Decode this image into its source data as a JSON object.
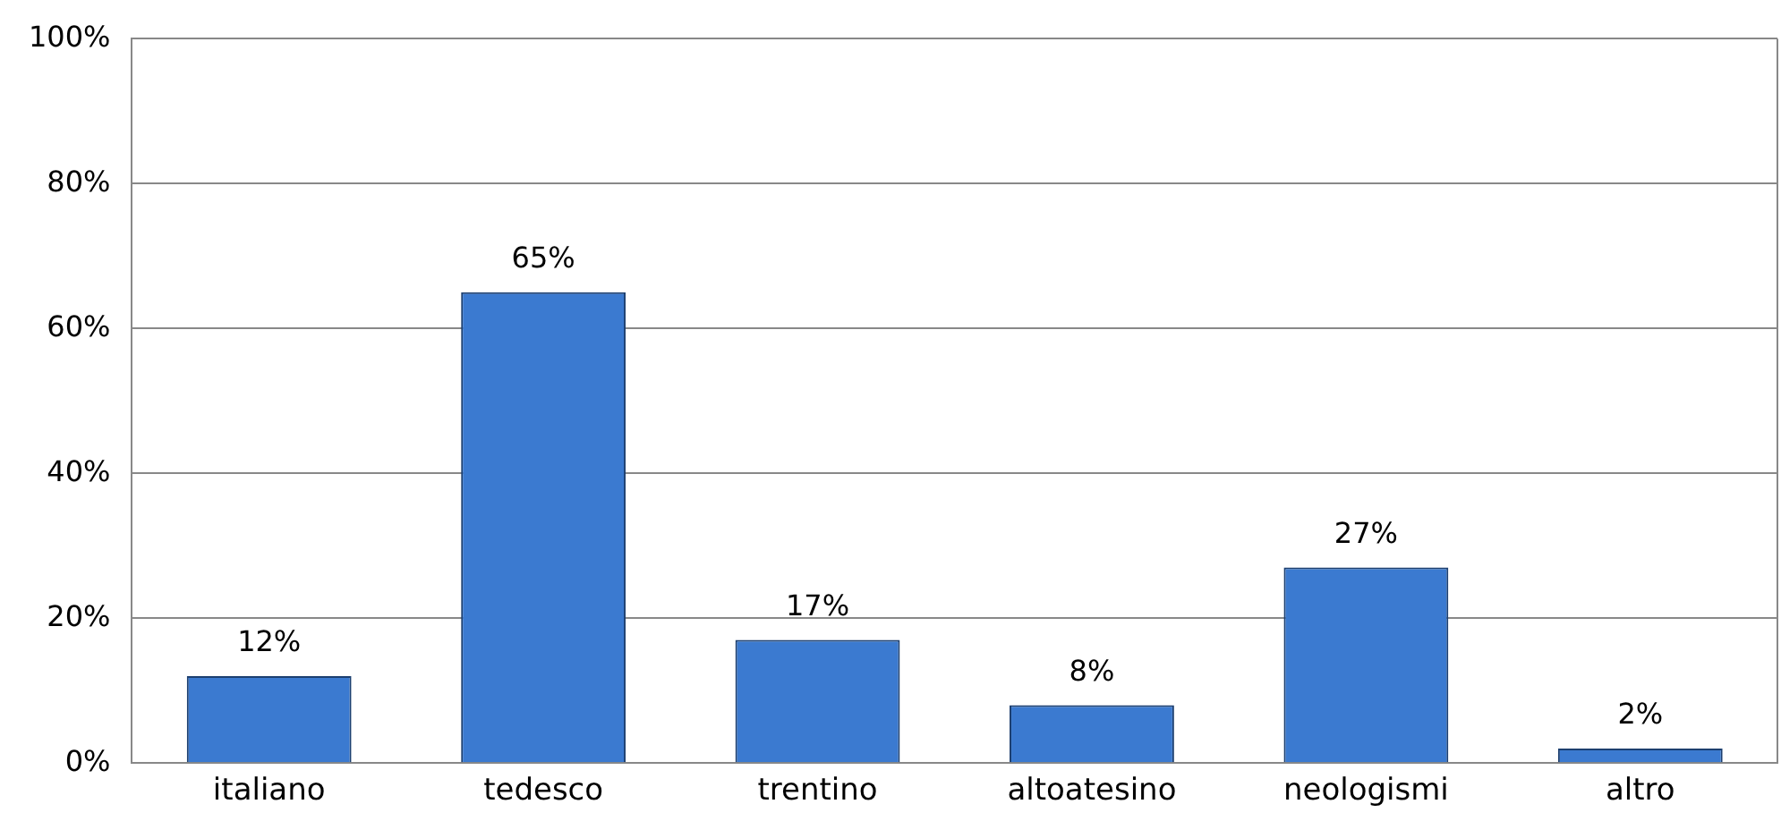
{
  "chart_data": {
    "type": "bar",
    "categories": [
      "italiano",
      "tedesco",
      "trentino",
      "altoatesino",
      "neologismi",
      "altro"
    ],
    "values": [
      12,
      65,
      17,
      8,
      27,
      2
    ],
    "value_labels": [
      "12%",
      "65%",
      "17%",
      "8%",
      "27%",
      "2%"
    ],
    "color": "#3b7ad0",
    "ylim": [
      0,
      100
    ],
    "yticks": [
      {
        "value": 0,
        "label": "0%"
      },
      {
        "value": 20,
        "label": "20%"
      },
      {
        "value": 40,
        "label": "40%"
      },
      {
        "value": 60,
        "label": "60%"
      },
      {
        "value": 80,
        "label": "80%"
      },
      {
        "value": 100,
        "label": "100%"
      }
    ],
    "grid": "y",
    "legend": false
  }
}
